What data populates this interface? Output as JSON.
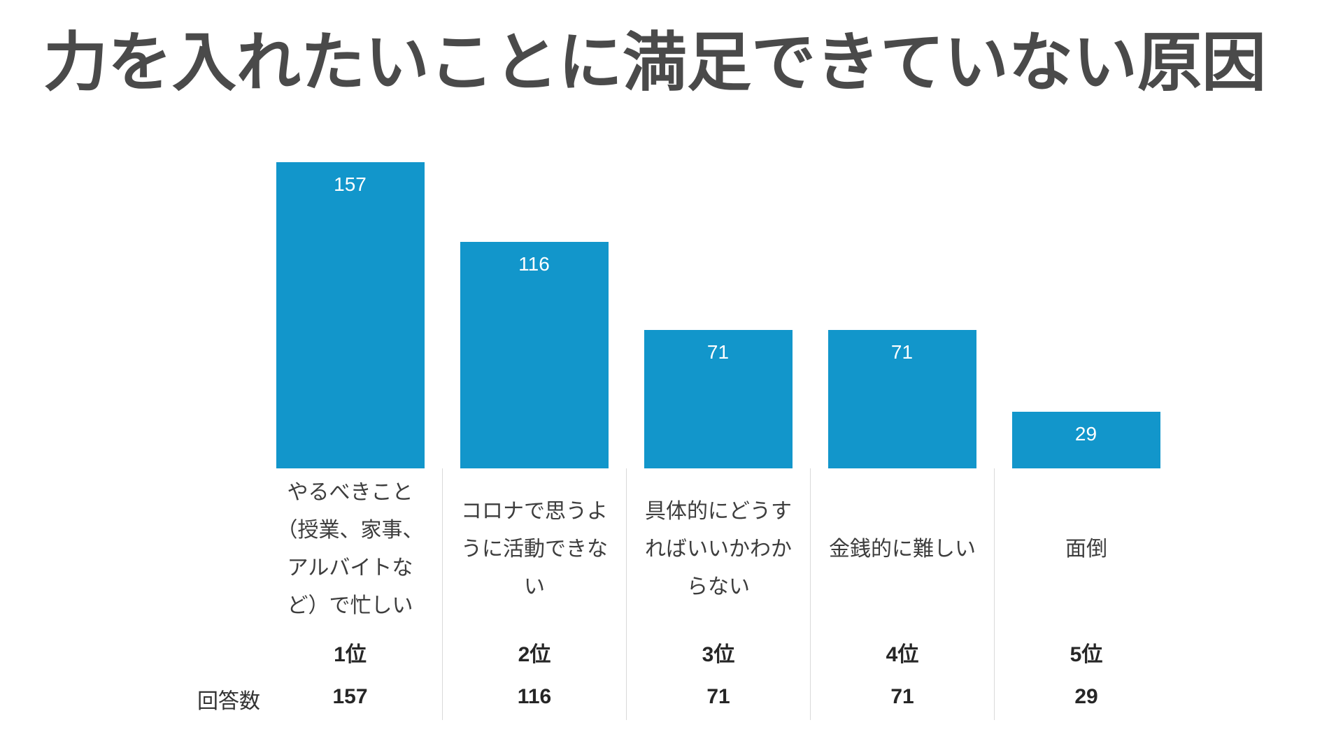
{
  "page": {
    "title": "力を入れたいことに満足できていない原因",
    "background": "#ffffff"
  },
  "chart_data": {
    "type": "bar",
    "title": "力を入れたいことに満足できていない原因",
    "bar_color": "#1296cb",
    "value_label_color": "#ffffff",
    "divider_color": "#d9d9d9",
    "grid": false,
    "legend": "none",
    "value_labels_position": "inside-top",
    "ylim": [
      0,
      157
    ],
    "row_header": "回答数",
    "categories": [
      "やるべきこと（授業、家事、アルバイトなど）で忙しい",
      "コロナで思うように活動できない",
      "具体的にどうすればいいかわからない",
      "金銭的に難しい",
      "面倒"
    ],
    "values": [
      157,
      116,
      71,
      71,
      29
    ],
    "columns": [
      {
        "rank": "1位",
        "value": 157,
        "label": "やるべきこと（授業、家事、アルバイトなど）で忙しい",
        "label_wrapped": "やるべきこと\n（授業、家事、\nアルバイトな\nど）で忙しい"
      },
      {
        "rank": "2位",
        "value": 116,
        "label": "コロナで思うように活動できない",
        "label_wrapped": "コロナで思うよ\nうに活動できな\nい"
      },
      {
        "rank": "3位",
        "value": 71,
        "label": "具体的にどうすればいいかわからない",
        "label_wrapped": "具体的にどうす\nればいいかわか\nらない"
      },
      {
        "rank": "4位",
        "value": 71,
        "label": "金銭的に難しい",
        "label_wrapped": "金銭的に難しい"
      },
      {
        "rank": "5位",
        "value": 29,
        "label": "面倒",
        "label_wrapped": "面倒"
      }
    ]
  }
}
